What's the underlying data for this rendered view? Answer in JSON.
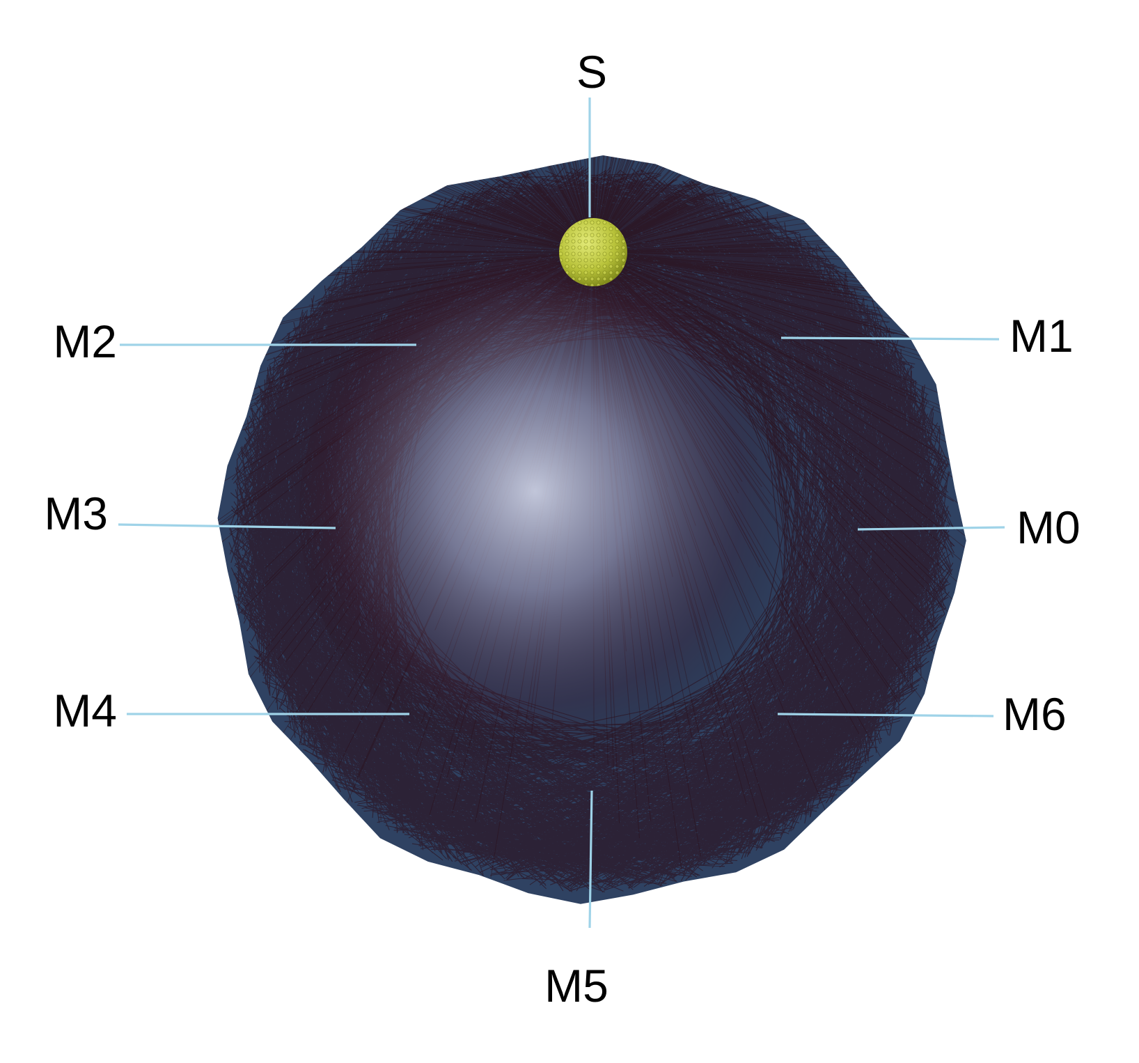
{
  "colors": {
    "background": "#ffffff",
    "sphere_rim": "#2f4262",
    "sphere_core": "#c9cde0",
    "ray_paths": "#2a0a12",
    "source_ball": "#b8c23a",
    "leader_line": "#9fd3e8",
    "label_text": "#000000"
  },
  "diagram": {
    "source": {
      "label": "S"
    },
    "microphones": [
      {
        "id": "m0",
        "label": "M0"
      },
      {
        "id": "m1",
        "label": "M1"
      },
      {
        "id": "m2",
        "label": "M2"
      },
      {
        "id": "m3",
        "label": "M3"
      },
      {
        "id": "m4",
        "label": "M4"
      },
      {
        "id": "m5",
        "label": "M5"
      },
      {
        "id": "m6",
        "label": "M6"
      }
    ]
  }
}
